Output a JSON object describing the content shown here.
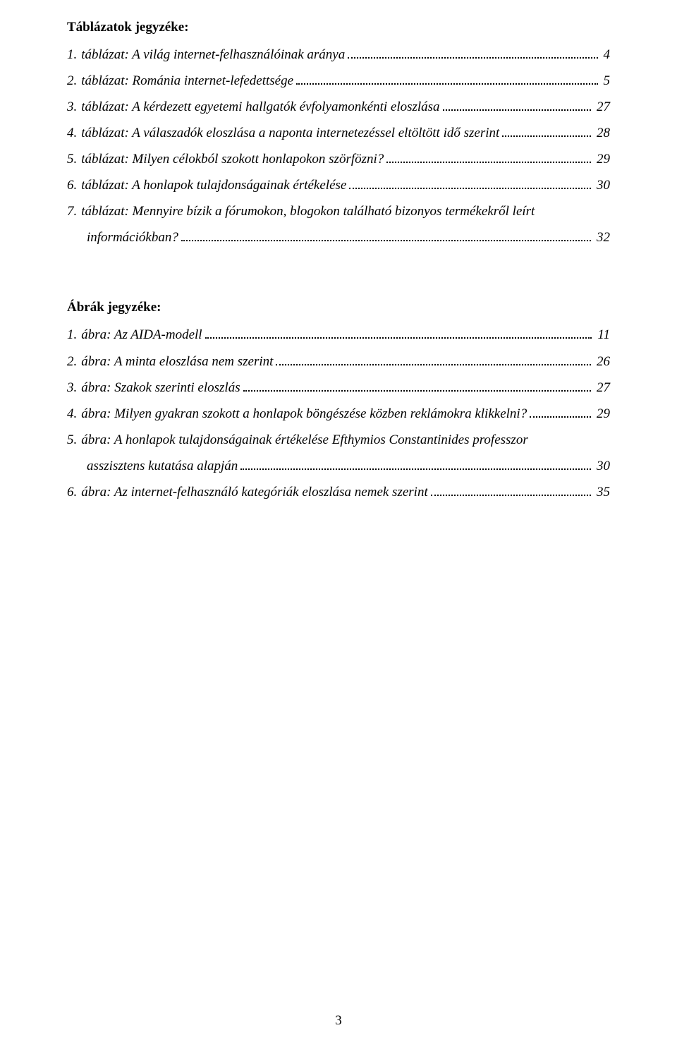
{
  "page_number": "3",
  "text_color": "#000000",
  "background_color": "#ffffff",
  "font_family": "Times New Roman",
  "body_fontsize_pt": 14,
  "sections": {
    "tables": {
      "heading": "Táblázatok jegyzéke:",
      "items": [
        {
          "num": "1.",
          "title": "táblázat: A világ internet-felhasználóinak aránya",
          "page": "4"
        },
        {
          "num": "2.",
          "title": "táblázat: Románia internet-lefedettsége",
          "page": "5"
        },
        {
          "num": "3.",
          "title": "táblázat: A kérdezett egyetemi hallgatók évfolyamonkénti eloszlása",
          "page": "27"
        },
        {
          "num": "4.",
          "title": "táblázat: A válaszadók eloszlása a naponta internetezéssel eltöltött idő szerint",
          "page": "28"
        },
        {
          "num": "5.",
          "title": "táblázat: Milyen célokból szokott honlapokon szörfözni?",
          "page": "29"
        },
        {
          "num": "6.",
          "title": "táblázat: A honlapok tulajdonságainak értékelése",
          "page": "30"
        },
        {
          "num": "7.",
          "title": "táblázat: Mennyire bízik a fórumokon, blogokon található bizonyos termékekről leírt",
          "title_cont": "információkban?",
          "page": "32"
        }
      ]
    },
    "figures": {
      "heading": "Ábrák jegyzéke:",
      "items": [
        {
          "num": "1.",
          "title": "ábra: Az AIDA-modell",
          "page": "11"
        },
        {
          "num": "2.",
          "title": "ábra: A minta eloszlása nem szerint",
          "page": "26"
        },
        {
          "num": "3.",
          "title": "ábra: Szakok szerinti eloszlás",
          "page": "27"
        },
        {
          "num": "4.",
          "title": "ábra: Milyen gyakran szokott a honlapok böngészése közben reklámokra klikkelni?",
          "page": "29"
        },
        {
          "num": "5.",
          "title": "ábra: A honlapok tulajdonságainak értékelése Efthymios Constantinides professzor",
          "title_cont": "asszisztens kutatása alapján",
          "page": "30"
        },
        {
          "num": "6.",
          "title": "ábra: Az internet-felhasználó kategóriák eloszlása nemek szerint",
          "page": "35"
        }
      ]
    }
  }
}
